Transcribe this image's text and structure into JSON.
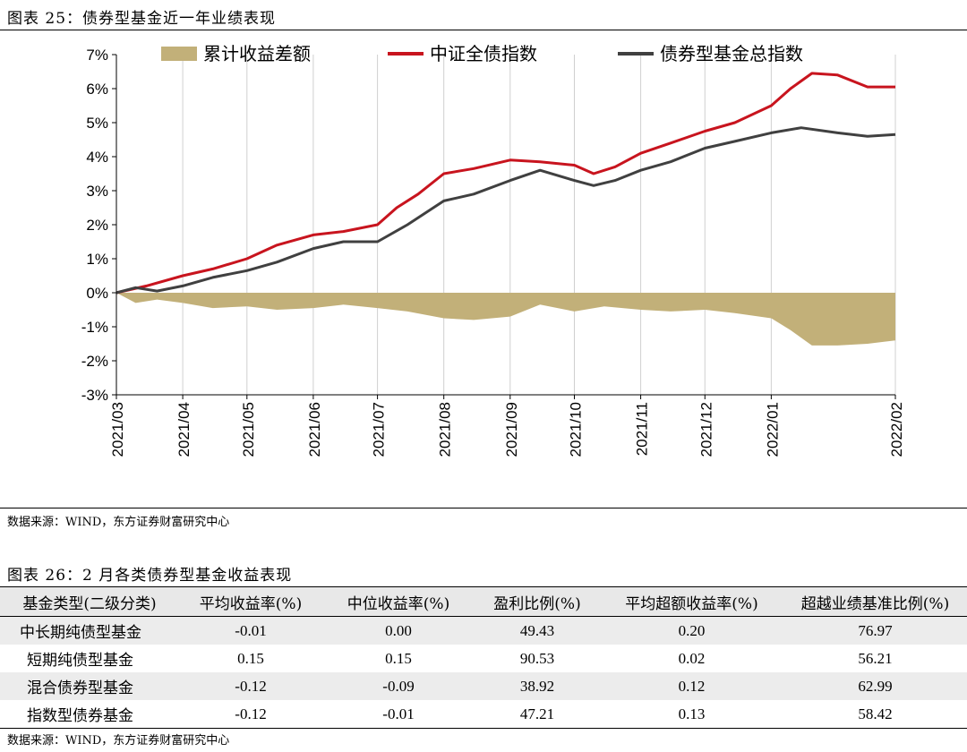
{
  "figure1": {
    "title": "图表 25：债券型基金近一年业绩表现",
    "source": "数据来源：WIND，东方证券财富研究中心"
  },
  "figure2": {
    "title": "图表 26：2 月各类债券型基金收益表现",
    "source": "数据来源：WIND，东方证券财富研究中心",
    "columns": [
      "基金类型(二级分类)",
      "平均收益率(%)",
      "中位收益率(%)",
      "盈利比例(%)",
      "平均超额收益率(%)",
      "超越业绩基准比例(%)"
    ],
    "rows": [
      [
        "中长期纯债型基金",
        "-0.01",
        "0.00",
        "49.43",
        "0.20",
        "76.97"
      ],
      [
        "短期纯债型基金",
        "0.15",
        "0.15",
        "90.53",
        "0.02",
        "56.21"
      ],
      [
        "混合债券型基金",
        "-0.12",
        "-0.09",
        "38.92",
        "0.12",
        "62.99"
      ],
      [
        "指数型债券基金",
        "-0.12",
        "-0.01",
        "47.21",
        "0.13",
        "58.42"
      ]
    ]
  },
  "chart_data": {
    "type": "line",
    "title": "",
    "xlabel": "",
    "ylabel": "",
    "y_unit": "%",
    "ylim": [
      -3,
      7
    ],
    "yticks": [
      "-3%",
      "-2%",
      "-1%",
      "0%",
      "1%",
      "2%",
      "3%",
      "4%",
      "5%",
      "6%",
      "7%"
    ],
    "x_range": [
      "2021-03-01",
      "2022-02-28"
    ],
    "xticks": [
      "2021/03",
      "2021/04",
      "2021/05",
      "2021/06",
      "2021/07",
      "2021/08",
      "2021/09",
      "2021/10",
      "2021/11",
      "2021/12",
      "2022/01",
      "2022/02"
    ],
    "legend_position": "top",
    "grid": "vertical",
    "series": [
      {
        "name": "累计收益差额",
        "kind": "area",
        "color": "#c2b079",
        "points": [
          [
            "2021-03-01",
            0
          ],
          [
            "2021-03-10",
            -0.3
          ],
          [
            "2021-03-20",
            -0.2
          ],
          [
            "2021-04-01",
            -0.3
          ],
          [
            "2021-04-15",
            -0.45
          ],
          [
            "2021-05-01",
            -0.4
          ],
          [
            "2021-05-15",
            -0.5
          ],
          [
            "2021-06-01",
            -0.45
          ],
          [
            "2021-06-15",
            -0.35
          ],
          [
            "2021-07-01",
            -0.45
          ],
          [
            "2021-07-15",
            -0.55
          ],
          [
            "2021-08-01",
            -0.75
          ],
          [
            "2021-08-15",
            -0.8
          ],
          [
            "2021-09-01",
            -0.7
          ],
          [
            "2021-09-15",
            -0.35
          ],
          [
            "2021-10-01",
            -0.55
          ],
          [
            "2021-10-15",
            -0.4
          ],
          [
            "2021-11-01",
            -0.5
          ],
          [
            "2021-11-15",
            -0.55
          ],
          [
            "2021-12-01",
            -0.5
          ],
          [
            "2021-12-15",
            -0.6
          ],
          [
            "2022-01-01",
            -0.75
          ],
          [
            "2022-01-10",
            -1.1
          ],
          [
            "2022-01-20",
            -1.55
          ],
          [
            "2022-02-01",
            -1.55
          ],
          [
            "2022-02-15",
            -1.5
          ],
          [
            "2022-02-28",
            -1.4
          ]
        ]
      },
      {
        "name": "中证全债指数",
        "kind": "line",
        "color": "#c8141e",
        "points": [
          [
            "2021-03-01",
            0
          ],
          [
            "2021-03-15",
            0.2
          ],
          [
            "2021-04-01",
            0.5
          ],
          [
            "2021-04-15",
            0.7
          ],
          [
            "2021-05-01",
            1.0
          ],
          [
            "2021-05-15",
            1.4
          ],
          [
            "2021-06-01",
            1.7
          ],
          [
            "2021-06-15",
            1.8
          ],
          [
            "2021-07-01",
            2.0
          ],
          [
            "2021-07-10",
            2.5
          ],
          [
            "2021-07-20",
            2.9
          ],
          [
            "2021-08-01",
            3.5
          ],
          [
            "2021-08-15",
            3.65
          ],
          [
            "2021-09-01",
            3.9
          ],
          [
            "2021-09-15",
            3.85
          ],
          [
            "2021-10-01",
            3.75
          ],
          [
            "2021-10-10",
            3.5
          ],
          [
            "2021-10-20",
            3.7
          ],
          [
            "2021-11-01",
            4.1
          ],
          [
            "2021-11-15",
            4.4
          ],
          [
            "2021-12-01",
            4.75
          ],
          [
            "2021-12-15",
            5.0
          ],
          [
            "2022-01-01",
            5.5
          ],
          [
            "2022-01-10",
            6.0
          ],
          [
            "2022-01-20",
            6.45
          ],
          [
            "2022-02-01",
            6.4
          ],
          [
            "2022-02-15",
            6.05
          ],
          [
            "2022-02-28",
            6.05
          ]
        ]
      },
      {
        "name": "债券型基金总指数",
        "kind": "line",
        "color": "#404040",
        "points": [
          [
            "2021-03-01",
            0
          ],
          [
            "2021-03-10",
            0.15
          ],
          [
            "2021-03-20",
            0.05
          ],
          [
            "2021-04-01",
            0.2
          ],
          [
            "2021-04-15",
            0.45
          ],
          [
            "2021-05-01",
            0.65
          ],
          [
            "2021-05-15",
            0.9
          ],
          [
            "2021-06-01",
            1.3
          ],
          [
            "2021-06-15",
            1.5
          ],
          [
            "2021-07-01",
            1.5
          ],
          [
            "2021-07-15",
            2.0
          ],
          [
            "2021-08-01",
            2.7
          ],
          [
            "2021-08-15",
            2.9
          ],
          [
            "2021-09-01",
            3.3
          ],
          [
            "2021-09-15",
            3.6
          ],
          [
            "2021-10-01",
            3.3
          ],
          [
            "2021-10-10",
            3.15
          ],
          [
            "2021-10-20",
            3.3
          ],
          [
            "2021-11-01",
            3.6
          ],
          [
            "2021-11-15",
            3.85
          ],
          [
            "2021-12-01",
            4.25
          ],
          [
            "2021-12-15",
            4.45
          ],
          [
            "2022-01-01",
            4.7
          ],
          [
            "2022-01-15",
            4.85
          ],
          [
            "2022-02-01",
            4.7
          ],
          [
            "2022-02-15",
            4.6
          ],
          [
            "2022-02-28",
            4.65
          ]
        ]
      }
    ]
  }
}
